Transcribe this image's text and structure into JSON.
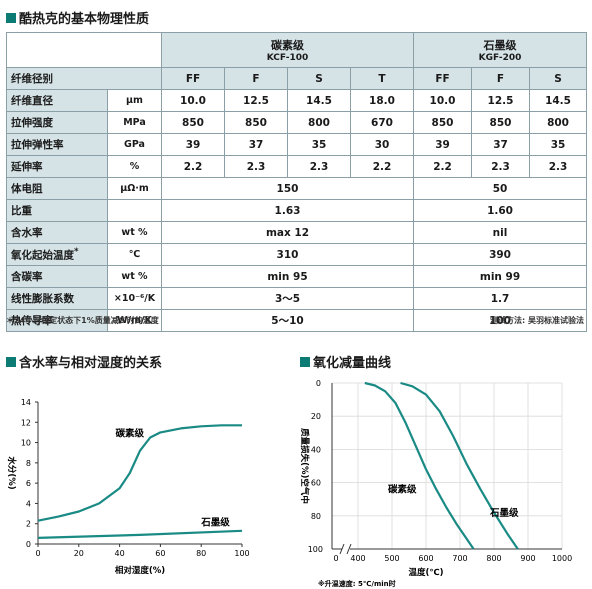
{
  "titles": {
    "main": "酷热克的基本物理性质",
    "chart1": "含水率与相对湿度的关系",
    "chart2": "氧化减量曲线"
  },
  "table": {
    "group1": {
      "name": "碳素级",
      "code": "KCF-100"
    },
    "group2": {
      "name": "石墨级",
      "code": "KGF-200"
    },
    "grade_label": "纤维径别",
    "grades": [
      "FF",
      "F",
      "S",
      "T",
      "FF",
      "F",
      "S"
    ],
    "rows": [
      {
        "name": "纤维直径",
        "unit": "μm",
        "values": [
          "10.0",
          "12.5",
          "14.5",
          "18.0",
          "10.0",
          "12.5",
          "14.5"
        ]
      },
      {
        "name": "拉伸强度",
        "unit": "MPa",
        "values": [
          "850",
          "850",
          "800",
          "670",
          "850",
          "850",
          "800"
        ]
      },
      {
        "name": "拉伸弹性率",
        "unit": "GPa",
        "values": [
          "39",
          "37",
          "35",
          "30",
          "39",
          "37",
          "35"
        ]
      },
      {
        "name": "延伸率",
        "unit": "%",
        "values": [
          "2.2",
          "2.3",
          "2.3",
          "2.2",
          "2.2",
          "2.3",
          "2.3"
        ]
      },
      {
        "name": "体电阻",
        "unit": "μΩ·m",
        "c": "150",
        "g": "50"
      },
      {
        "name": "比重",
        "unit": "",
        "c": "1.63",
        "g": "1.60"
      },
      {
        "name": "含水率",
        "unit": "wt %",
        "c": "max 12",
        "g": "nil"
      },
      {
        "name": "氧化起始温度",
        "mark": "*",
        "unit": "℃",
        "c": "310",
        "g": "390"
      },
      {
        "name": "含碳率",
        "unit": "wt %",
        "c": "min 95",
        "g": "min 99"
      },
      {
        "name": "线性膨胀系数",
        "unit": "×10⁻⁶/K",
        "c": "3～5",
        "g": "1.7"
      },
      {
        "name": "热传导率",
        "unit": "W/m/K",
        "c": "5～10",
        "g": "100"
      }
    ],
    "footnote": "＊24小时稳定状态下1%质量减少时的温度",
    "method": "测试方法: 吴羽标准试验法"
  },
  "chart_data": [
    {
      "type": "line",
      "title": "含水率与相对湿度的关系",
      "xlabel": "相对湿度(%)",
      "ylabel": "水分(%)",
      "xlim": [
        0,
        100
      ],
      "ylim": [
        0,
        14
      ],
      "xticks": [
        "0",
        "20",
        "40",
        "60",
        "80",
        "100"
      ],
      "yticks": [
        "0",
        "2",
        "4",
        "6",
        "8",
        "10",
        "12",
        "14"
      ],
      "grid": false,
      "series": [
        {
          "name": "碳素级",
          "x": [
            0,
            10,
            20,
            30,
            40,
            45,
            50,
            55,
            60,
            70,
            80,
            90,
            100
          ],
          "y": [
            2.3,
            2.7,
            3.2,
            4.0,
            5.5,
            7.0,
            9.2,
            10.5,
            11.0,
            11.4,
            11.6,
            11.7,
            11.7
          ]
        },
        {
          "name": "石墨级",
          "x": [
            0,
            50,
            100
          ],
          "y": [
            0.6,
            0.9,
            1.3
          ]
        }
      ]
    },
    {
      "type": "line",
      "title": "氧化减量曲线",
      "xlabel": "温度(℃)",
      "ylabel": "质量损失(%)空气中",
      "xlim": [
        400,
        1000
      ],
      "ylim": [
        0,
        100
      ],
      "y_inverted": true,
      "xticks": [
        "400",
        "500",
        "600",
        "700",
        "800",
        "900",
        "1000"
      ],
      "x_origin_label": "0",
      "yticks": [
        "0",
        "20",
        "40",
        "60",
        "80"
      ],
      "y_bottom_label": "100",
      "grid": true,
      "note": "※升温速度: 5℃/min时",
      "series": [
        {
          "name": "碳素级",
          "x": [
            420,
            450,
            480,
            510,
            540,
            570,
            600,
            630,
            660,
            690,
            720,
            740
          ],
          "y": [
            0,
            1.5,
            5,
            12,
            24,
            38,
            52,
            64,
            75,
            85,
            94,
            100
          ]
        },
        {
          "name": "石墨级",
          "x": [
            525,
            560,
            600,
            640,
            680,
            720,
            760,
            800,
            840,
            870
          ],
          "y": [
            0,
            2,
            7,
            17,
            32,
            49,
            64,
            78,
            91,
            100
          ]
        }
      ]
    }
  ],
  "colors": {
    "accent": "#0b7b73",
    "header_bg": "#d6e3e6",
    "line": "#1a8a85",
    "grid": "#d9d9d9"
  }
}
